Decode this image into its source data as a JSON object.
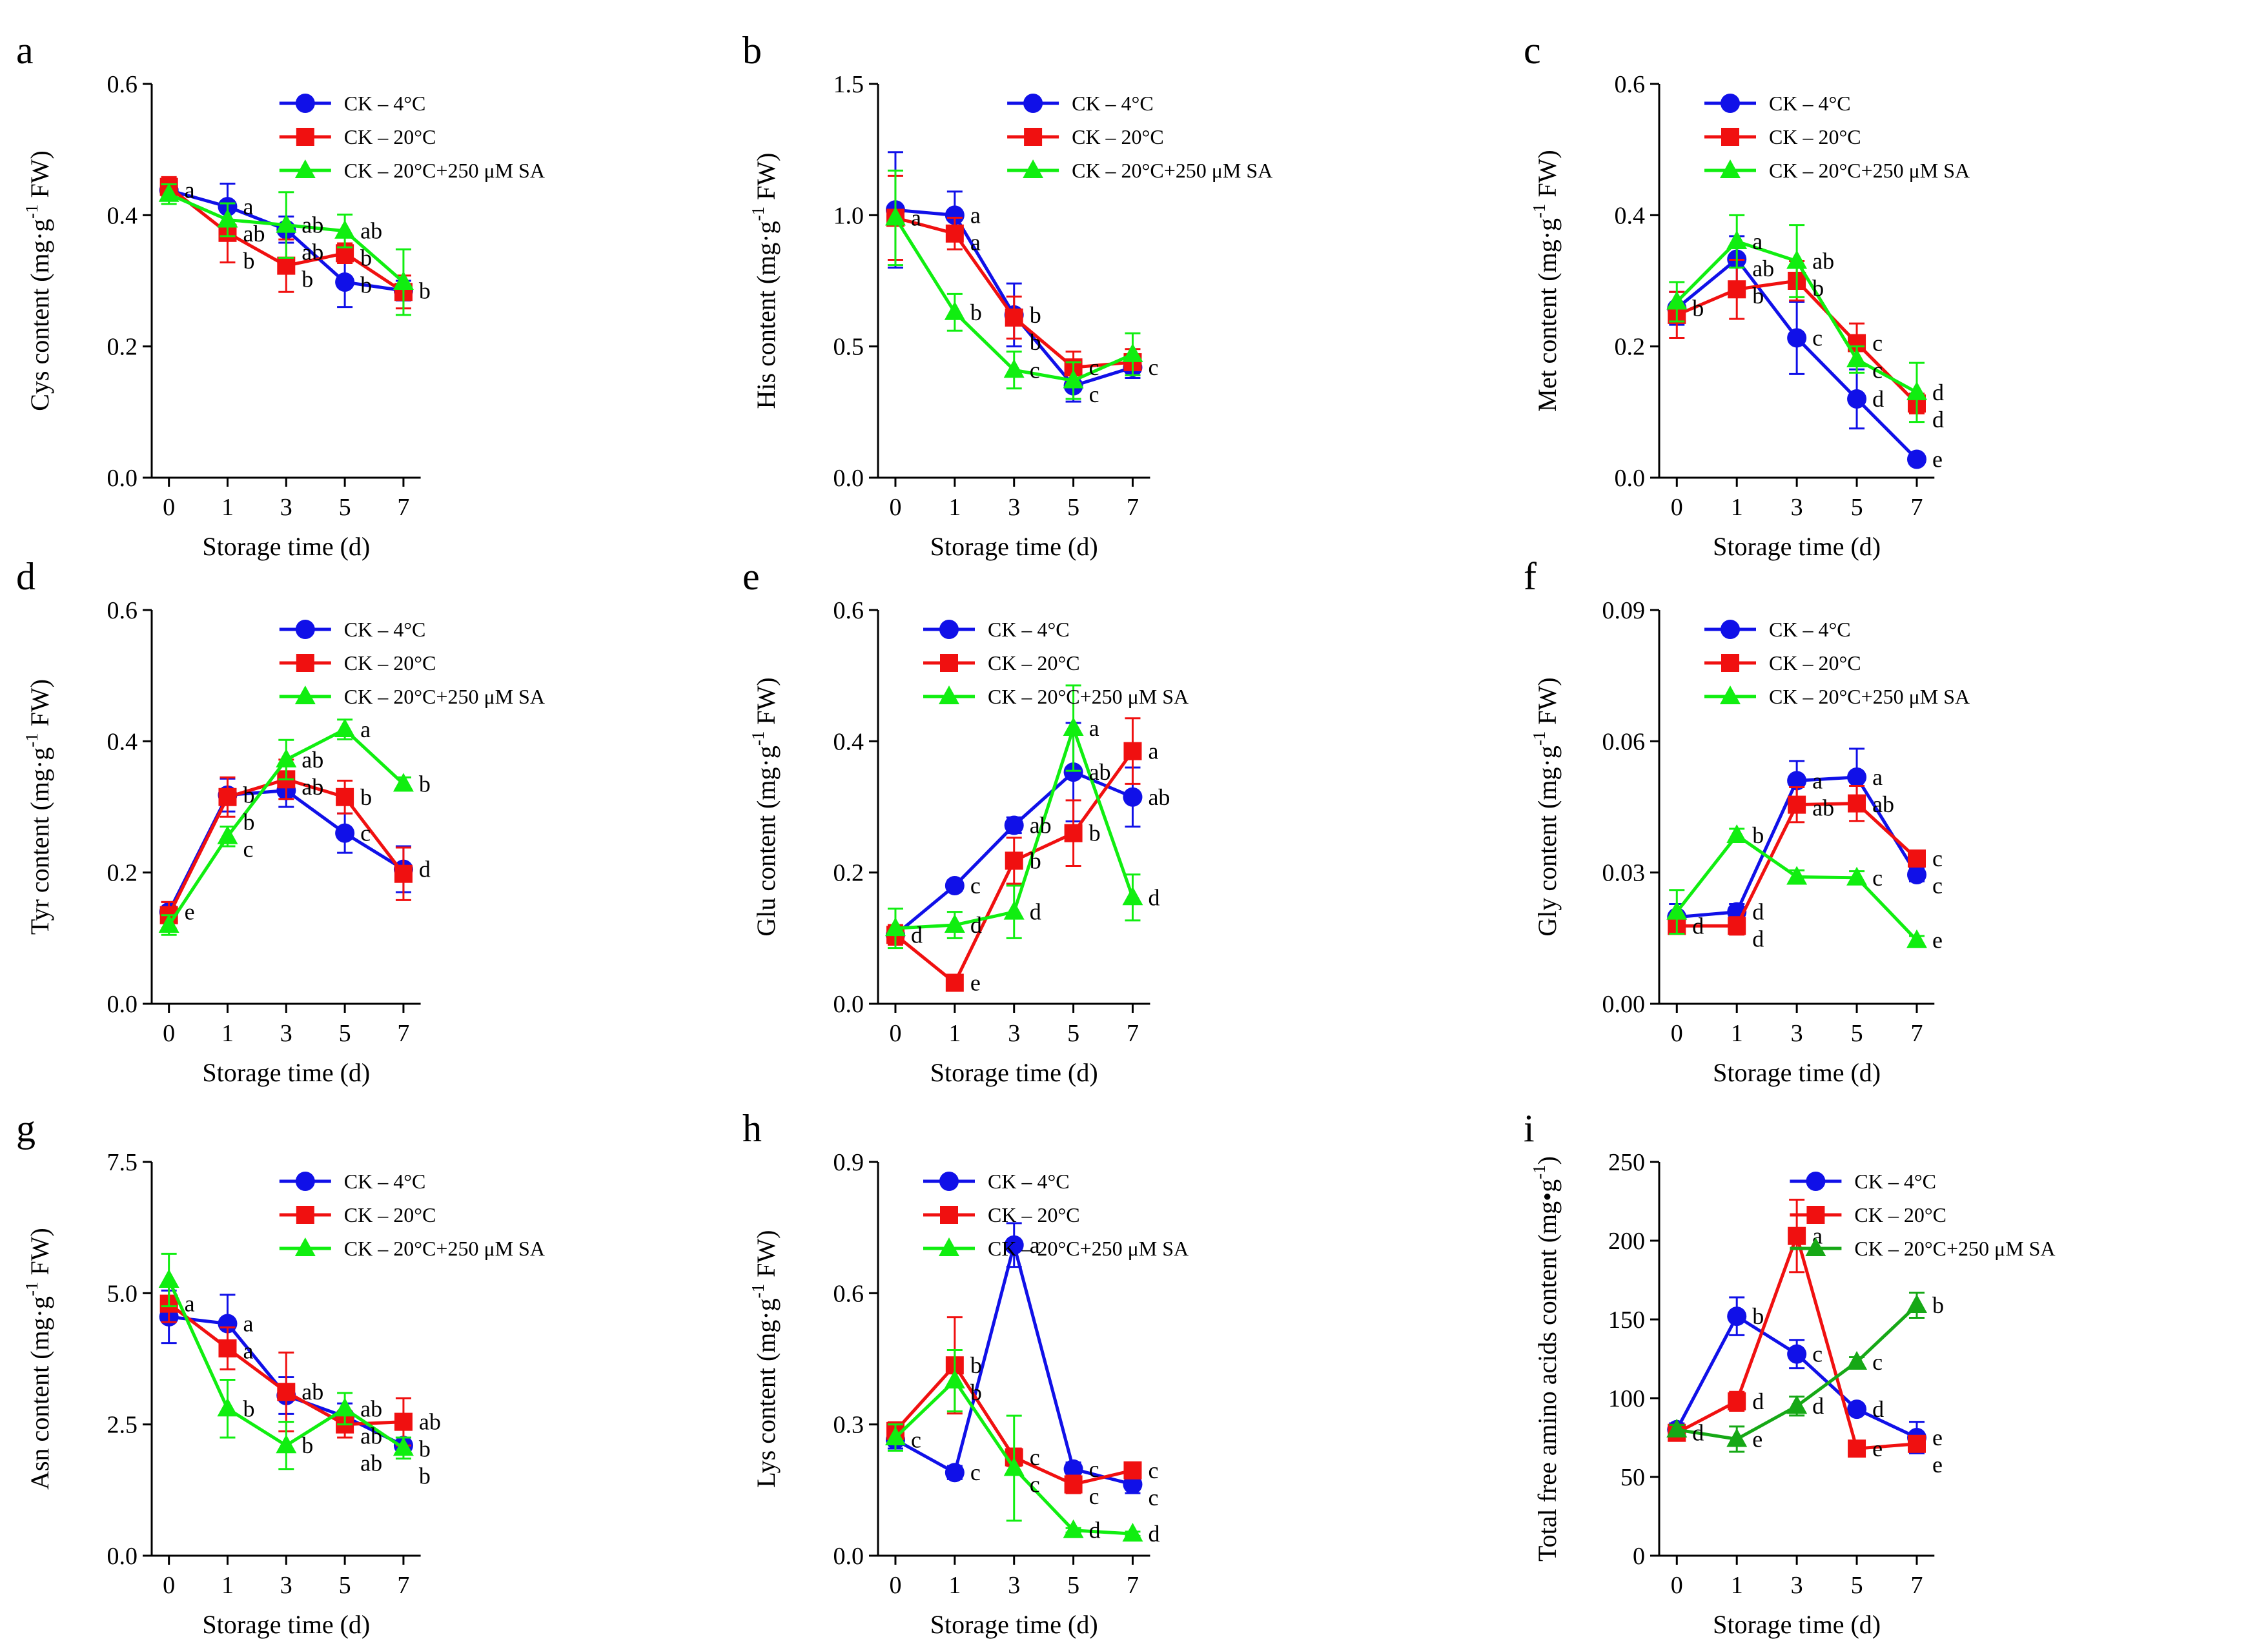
{
  "colors": {
    "s0": "#1010e8",
    "s1": "#f01010",
    "s2": "#10ee10",
    "s2_alt": "#16a816",
    "axis": "#000000"
  },
  "series_names": [
    "CK – 4°C",
    "CK – 20°C",
    "CK – 20°C+250 μM SA"
  ],
  "marker_names": [
    "circle",
    "square",
    "triangle"
  ],
  "chart_data": [
    {
      "type": "line",
      "panel_label": "a",
      "ylabel_main": "Cys content (mg·g",
      "ylabel_sup": "-1",
      "ylabel_end": " FW)",
      "xlabel": "Storage time (d)",
      "categories": [
        "0",
        "1",
        "3",
        "5",
        "7"
      ],
      "ylim": [
        0,
        0.6
      ],
      "yticks": [
        0.0,
        0.2,
        0.4,
        0.6
      ],
      "ytick_labels": [
        "0.0",
        "0.2",
        "0.4",
        "0.6"
      ],
      "legend_position": "top-right",
      "series": [
        {
          "name": "CK – 4°C",
          "values": [
            0.438,
            0.413,
            0.378,
            0.298,
            0.285
          ],
          "errors": [
            0.012,
            0.035,
            0.02,
            0.038,
            0.015
          ],
          "letters": [
            "a",
            "a",
            "ab",
            "b",
            "b"
          ]
        },
        {
          "name": "CK – 20°C",
          "values": [
            0.443,
            0.373,
            0.323,
            0.342,
            0.283
          ],
          "errors": [
            0.015,
            0.045,
            0.04,
            0.015,
            0.025
          ],
          "letters": [
            "",
            "b",
            "b",
            "b",
            ""
          ]
        },
        {
          "name": "CK – 20°C+250 μM SA",
          "values": [
            0.432,
            0.393,
            0.385,
            0.376,
            0.298
          ],
          "errors": [
            0.015,
            0.025,
            0.05,
            0.025,
            0.05
          ],
          "letters": [
            "",
            "ab",
            "ab",
            "ab",
            ""
          ]
        }
      ]
    },
    {
      "type": "line",
      "panel_label": "b",
      "ylabel_main": "His content (mg·g",
      "ylabel_sup": "-1",
      "ylabel_end": " FW)",
      "xlabel": "Storage time (d)",
      "categories": [
        "0",
        "1",
        "3",
        "5",
        "7"
      ],
      "ylim": [
        0,
        1.5
      ],
      "yticks": [
        0.0,
        0.5,
        1.0,
        1.5
      ],
      "ytick_labels": [
        "0.0",
        "0.5",
        "1.0",
        "1.5"
      ],
      "legend_position": "top-right",
      "series": [
        {
          "name": "CK – 4°C",
          "values": [
            1.02,
            1.0,
            0.62,
            0.35,
            0.42
          ],
          "errors": [
            0.22,
            0.09,
            0.12,
            0.06,
            0.04
          ],
          "letters": [
            "",
            "a",
            "b",
            "c",
            "c"
          ]
        },
        {
          "name": "CK – 20°C",
          "values": [
            0.99,
            0.93,
            0.61,
            0.42,
            0.44
          ],
          "errors": [
            0.16,
            0.06,
            0.08,
            0.06,
            0.05
          ],
          "letters": [
            "a",
            "a",
            "b",
            "c",
            ""
          ]
        },
        {
          "name": "CK – 20°C+250 μM SA",
          "values": [
            0.99,
            0.63,
            0.41,
            0.37,
            0.47
          ],
          "errors": [
            0.18,
            0.07,
            0.07,
            0.07,
            0.08
          ],
          "letters": [
            "",
            "b",
            "c",
            "",
            ""
          ]
        }
      ]
    },
    {
      "type": "line",
      "panel_label": "c",
      "ylabel_main": "Met content (mg·g",
      "ylabel_sup": "-1",
      "ylabel_end": " FW)",
      "xlabel": "Storage time (d)",
      "categories": [
        "0",
        "1",
        "3",
        "5",
        "7"
      ],
      "ylim": [
        0,
        0.6
      ],
      "yticks": [
        0.0,
        0.2,
        0.4,
        0.6
      ],
      "ytick_labels": [
        "0.0",
        "0.2",
        "0.4",
        "0.6"
      ],
      "legend_position": "top-left",
      "series": [
        {
          "name": "CK – 4°C",
          "values": [
            0.258,
            0.333,
            0.213,
            0.12,
            0.028
          ],
          "errors": [
            0.025,
            0.035,
            0.055,
            0.045,
            0.005
          ],
          "letters": [
            "b",
            "ab",
            "c",
            "d",
            "e"
          ]
        },
        {
          "name": "CK – 20°C",
          "values": [
            0.248,
            0.287,
            0.3,
            0.205,
            0.113
          ],
          "errors": [
            0.035,
            0.045,
            0.03,
            0.03,
            0.015
          ],
          "letters": [
            "",
            "b",
            "b",
            "c",
            "d"
          ]
        },
        {
          "name": "CK – 20°C+250 μM SA",
          "values": [
            0.268,
            0.36,
            0.33,
            0.18,
            0.13
          ],
          "errors": [
            0.03,
            0.04,
            0.055,
            0.02,
            0.045
          ],
          "letters": [
            "",
            "a",
            "ab",
            "c",
            "d"
          ]
        }
      ]
    },
    {
      "type": "line",
      "panel_label": "d",
      "ylabel_main": "Tyr content (mg·g",
      "ylabel_sup": "-1",
      "ylabel_end": " FW)",
      "xlabel": "Storage time (d)",
      "categories": [
        "0",
        "1",
        "3",
        "5",
        "7"
      ],
      "ylim": [
        0,
        0.6
      ],
      "yticks": [
        0.0,
        0.2,
        0.4,
        0.6
      ],
      "ytick_labels": [
        "0.0",
        "0.2",
        "0.4",
        "0.6"
      ],
      "legend_position": "top-right",
      "series": [
        {
          "name": "CK – 4°C",
          "values": [
            0.14,
            0.318,
            0.325,
            0.26,
            0.205
          ],
          "errors": [
            0.015,
            0.025,
            0.025,
            0.03,
            0.035
          ],
          "letters": [
            "e",
            "b",
            "",
            "c",
            "d"
          ]
        },
        {
          "name": "CK – 20°C",
          "values": [
            0.135,
            0.315,
            0.342,
            0.315,
            0.198
          ],
          "errors": [
            0.02,
            0.03,
            0.03,
            0.025,
            0.04
          ],
          "letters": [
            "",
            "b",
            "ab",
            "b",
            ""
          ]
        },
        {
          "name": "CK – 20°C+250 μM SA",
          "values": [
            0.12,
            0.255,
            0.372,
            0.418,
            0.335
          ],
          "errors": [
            0.015,
            0.015,
            0.03,
            0.015,
            0.01
          ],
          "letters": [
            "",
            "c",
            "ab",
            "a",
            "b"
          ]
        }
      ]
    },
    {
      "type": "line",
      "panel_label": "e",
      "ylabel_main": "Glu content (mg·g",
      "ylabel_sup": "-1",
      "ylabel_end": " FW)",
      "xlabel": "Storage time (d)",
      "categories": [
        "0",
        "1",
        "3",
        "5",
        "7"
      ],
      "ylim": [
        0,
        0.6
      ],
      "yticks": [
        0.0,
        0.2,
        0.4,
        0.6
      ],
      "ytick_labels": [
        "0.0",
        "0.2",
        "0.4",
        "0.6"
      ],
      "legend_position": "top-left",
      "series": [
        {
          "name": "CK – 4°C",
          "values": [
            0.105,
            0.18,
            0.272,
            0.353,
            0.315
          ],
          "errors": [
            0.012,
            0.008,
            0.012,
            0.075,
            0.045
          ],
          "letters": [
            "",
            "c",
            "ab",
            "ab",
            "ab"
          ]
        },
        {
          "name": "CK – 20°C",
          "values": [
            0.105,
            0.032,
            0.218,
            0.26,
            0.385
          ],
          "errors": [
            0.015,
            0.008,
            0.035,
            0.05,
            0.05
          ],
          "letters": [
            "d",
            "e",
            "b",
            "b",
            "a"
          ]
        },
        {
          "name": "CK – 20°C+250 μM SA",
          "values": [
            0.115,
            0.12,
            0.14,
            0.42,
            0.162
          ],
          "errors": [
            0.03,
            0.02,
            0.04,
            0.065,
            0.035
          ],
          "letters": [
            "",
            "d",
            "d",
            "a",
            "d"
          ]
        }
      ]
    },
    {
      "type": "line",
      "panel_label": "f",
      "ylabel_main": "Gly content (mg·g",
      "ylabel_sup": "-1",
      "ylabel_end": " FW)",
      "xlabel": "Storage time (d)",
      "categories": [
        "0",
        "1",
        "3",
        "5",
        "7"
      ],
      "ylim": [
        0,
        0.09
      ],
      "yticks": [
        0.0,
        0.03,
        0.06,
        0.09
      ],
      "ytick_labels": [
        "0.00",
        "0.03",
        "0.06",
        "0.09"
      ],
      "legend_position": "top-left",
      "series": [
        {
          "name": "CK – 4°C",
          "values": [
            0.0198,
            0.021,
            0.051,
            0.0518,
            0.0295
          ],
          "errors": [
            0.003,
            0.0018,
            0.0045,
            0.0065,
            0.0015
          ],
          "letters": [
            "",
            "d",
            "a",
            "a",
            "c"
          ]
        },
        {
          "name": "CK – 20°C",
          "values": [
            0.0178,
            0.0178,
            0.0455,
            0.0458,
            0.0332
          ],
          "errors": [
            0.0015,
            0.002,
            0.004,
            0.004,
            0.0015
          ],
          "letters": [
            "d",
            "d",
            "ab",
            "ab",
            "c"
          ]
        },
        {
          "name": "CK – 20°C+250 μM SA",
          "values": [
            0.021,
            0.0385,
            0.029,
            0.0288,
            0.0145
          ],
          "errors": [
            0.005,
            0.0015,
            0.0015,
            0.0015,
            0.001
          ],
          "letters": [
            "",
            "b",
            "",
            "c",
            "e"
          ]
        }
      ]
    },
    {
      "type": "line",
      "panel_label": "g",
      "ylabel_main": "Asn content (mg·g",
      "ylabel_sup": "-1",
      "ylabel_end": " FW)",
      "xlabel": "Storage time (d)",
      "categories": [
        "0",
        "1",
        "3",
        "5",
        "7"
      ],
      "ylim": [
        0,
        7.5
      ],
      "yticks": [
        0.0,
        2.5,
        5.0,
        7.5
      ],
      "ytick_labels": [
        "0.0",
        "2.5",
        "5.0",
        "7.5"
      ],
      "legend_position": "top-right",
      "series": [
        {
          "name": "CK – 4°C",
          "values": [
            4.55,
            4.42,
            3.05,
            2.65,
            2.1
          ],
          "errors": [
            0.5,
            0.55,
            0.35,
            0.25,
            0.15
          ],
          "letters": [
            "",
            "a",
            "",
            "ab",
            "b"
          ]
        },
        {
          "name": "CK – 20°C",
          "values": [
            4.8,
            3.95,
            3.12,
            2.5,
            2.55
          ],
          "errors": [
            0.35,
            0.4,
            0.75,
            0.25,
            0.45
          ],
          "letters": [
            "a",
            "a",
            "ab",
            "ab",
            "ab"
          ]
        },
        {
          "name": "CK – 20°C+250 μM SA",
          "values": [
            5.25,
            2.8,
            2.1,
            2.8,
            2.05
          ],
          "errors": [
            0.5,
            0.55,
            0.45,
            0.3,
            0.2
          ],
          "letters": [
            "",
            "b",
            "b",
            "ab",
            "b"
          ]
        }
      ]
    },
    {
      "type": "line",
      "panel_label": "h",
      "ylabel_main": "Lys content (mg·g",
      "ylabel_sup": "-1",
      "ylabel_end": " FW)",
      "xlabel": "Storage time (d)",
      "categories": [
        "0",
        "1",
        "3",
        "5",
        "7"
      ],
      "ylim": [
        0,
        0.9
      ],
      "yticks": [
        0.0,
        0.3,
        0.6,
        0.9
      ],
      "ytick_labels": [
        "0.0",
        "0.3",
        "0.6",
        "0.9"
      ],
      "legend_position": "top-left",
      "series": [
        {
          "name": "CK – 4°C",
          "values": [
            0.265,
            0.19,
            0.71,
            0.198,
            0.163
          ],
          "errors": [
            0.02,
            0.015,
            0.05,
            0.015,
            0.02
          ],
          "letters": [
            "c",
            "c",
            "a",
            "c",
            "c"
          ]
        },
        {
          "name": "CK – 20°C",
          "values": [
            0.285,
            0.435,
            0.225,
            0.163,
            0.195
          ],
          "errors": [
            0.02,
            0.11,
            0.02,
            0.02,
            0.015
          ],
          "letters": [
            "",
            "b",
            "c",
            "c",
            "c"
          ]
        },
        {
          "name": "CK – 20°C+250 μM SA",
          "values": [
            0.27,
            0.4,
            0.2,
            0.058,
            0.05
          ],
          "errors": [
            0.03,
            0.07,
            0.12,
            0.005,
            0.005
          ],
          "letters": [
            "",
            "b",
            "c",
            "d",
            "d"
          ]
        }
      ]
    },
    {
      "type": "line",
      "panel_label": "i",
      "ylabel_main": "Total free amino acids content (mg•g",
      "ylabel_sup": "-1",
      "ylabel_end": ")",
      "xlabel": "Storage time (d)",
      "categories": [
        "0",
        "1",
        "3",
        "5",
        "7"
      ],
      "ylim": [
        0,
        250
      ],
      "yticks": [
        0,
        50,
        100,
        150,
        200,
        250
      ],
      "ytick_labels": [
        "0",
        "50",
        "100",
        "150",
        "200",
        "250"
      ],
      "legend_position": "top-right",
      "green_dark": true,
      "series": [
        {
          "name": "CK – 4°C",
          "values": [
            80,
            152,
            128,
            93,
            75
          ],
          "errors": [
            4,
            12,
            9,
            3,
            10
          ],
          "letters": [
            "",
            "b",
            "c",
            "d",
            "e"
          ]
        },
        {
          "name": "CK – 20°C",
          "values": [
            78,
            98,
            203,
            68,
            71
          ],
          "errors": [
            3,
            6,
            23,
            3,
            5
          ],
          "letters": [
            "d",
            "d",
            "a",
            "e",
            "e"
          ]
        },
        {
          "name": "CK – 20°C+250 μM SA",
          "values": [
            80,
            74,
            95,
            123,
            159
          ],
          "errors": [
            3,
            8,
            6,
            3,
            8
          ],
          "letters": [
            "",
            "e",
            "d",
            "c",
            "b"
          ]
        }
      ]
    }
  ]
}
